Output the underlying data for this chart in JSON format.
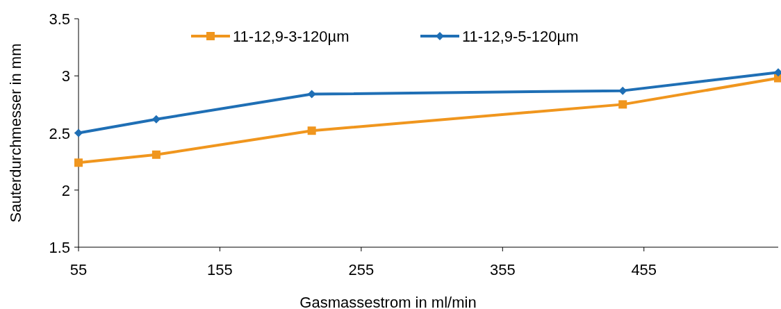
{
  "chart_data": {
    "type": "line",
    "xlabel": "Gasmassestrom in ml/min",
    "ylabel": "Sauterdurchmesser in mm",
    "x": [
      55,
      110,
      220,
      440,
      550
    ],
    "series": [
      {
        "name": "11-12,9-3-120µm",
        "color": "#f0961e",
        "values": [
          2.24,
          2.31,
          2.52,
          2.75,
          2.98
        ],
        "marker": "square"
      },
      {
        "name": "11-12,9-5-120µm",
        "color": "#1f6fb5",
        "values": [
          2.5,
          2.62,
          2.84,
          2.87,
          3.03
        ],
        "marker": "diamond"
      }
    ],
    "xlim": [
      55,
      550
    ],
    "xticks": [
      55,
      155,
      255,
      355,
      455
    ],
    "ylim": [
      1.5,
      3.5
    ],
    "yticks": [
      1.5,
      2,
      2.5,
      3,
      3.5
    ],
    "grid": false,
    "legend": "top",
    "line_style": "solid"
  }
}
